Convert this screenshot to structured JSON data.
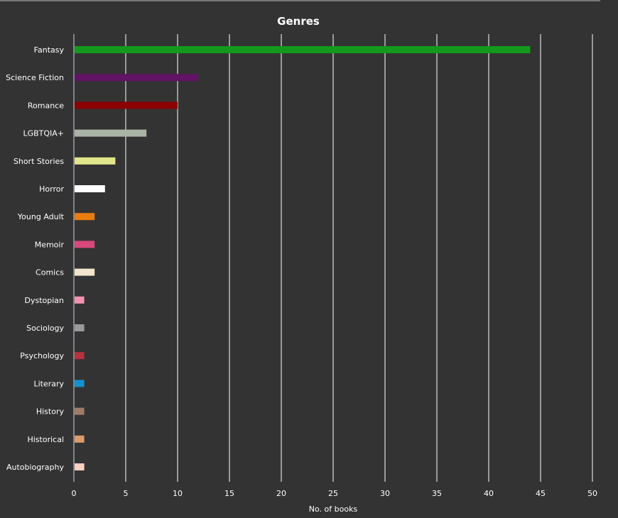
{
  "chart_data": {
    "type": "bar",
    "orientation": "horizontal",
    "title": "Genres",
    "xlabel": "No. of books",
    "ylabel": "",
    "xlim": [
      0,
      50
    ],
    "xticks": [
      "0",
      "5",
      "10",
      "15",
      "20",
      "25",
      "30",
      "35",
      "40",
      "45",
      "50"
    ],
    "grid": true,
    "categories": [
      "Fantasy",
      "Science Fiction",
      "Romance",
      "LGBTQIA+",
      "Short Stories",
      "Horror",
      "Young Adult",
      "Memoir",
      "Comics",
      "Dystopian",
      "Sociology",
      "Psychology",
      "Literary",
      "History",
      "Historical",
      "Autobiography"
    ],
    "values": [
      44,
      12,
      10,
      7,
      4,
      3,
      2,
      2,
      2,
      1,
      1,
      1,
      1,
      1,
      1,
      1
    ],
    "colors": [
      "#139a1c",
      "#621364",
      "#8b0000",
      "#a9b3a6",
      "#e1e68a",
      "#ffffff",
      "#ea7b0e",
      "#d8487a",
      "#f4e4cd",
      "#f392b0",
      "#9a9a9a",
      "#b6323c",
      "#1391cf",
      "#a07c64",
      "#dc9c6c",
      "#fdcfc0"
    ]
  }
}
